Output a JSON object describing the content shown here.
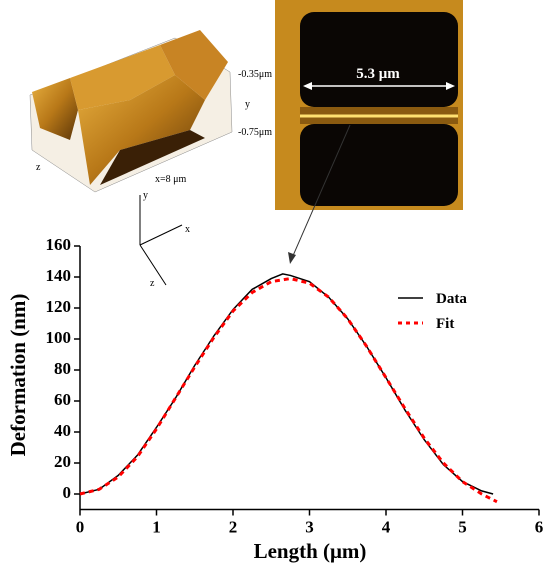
{
  "chart_data": {
    "type": "line",
    "xlabel": "Length (μm)",
    "ylabel": "Deformation (nm)",
    "xlim": [
      0,
      6
    ],
    "ylim": [
      -10,
      160
    ],
    "xticks": [
      0,
      1,
      2,
      3,
      4,
      5,
      6
    ],
    "yticks": [
      0,
      20,
      40,
      60,
      80,
      100,
      120,
      140,
      160
    ],
    "legend": "right",
    "series": [
      {
        "name": "Data",
        "color": "#000000",
        "style": "solid",
        "x": [
          0,
          0.25,
          0.5,
          0.75,
          1,
          1.25,
          1.5,
          1.75,
          2,
          2.25,
          2.5,
          2.65,
          2.75,
          3,
          3.25,
          3.5,
          3.75,
          4,
          4.25,
          4.5,
          4.75,
          5,
          5.25,
          5.4
        ],
        "values": [
          0,
          3,
          12,
          25,
          43,
          62,
          83,
          102,
          119,
          132,
          139,
          142,
          141,
          137,
          127,
          113,
          95,
          75,
          54,
          35,
          19,
          8,
          2,
          0
        ]
      },
      {
        "name": "Fit",
        "color": "#ff0000",
        "style": "dotted",
        "x": [
          0,
          0.25,
          0.5,
          0.75,
          1,
          1.25,
          1.5,
          1.75,
          2,
          2.25,
          2.5,
          2.75,
          3,
          3.25,
          3.5,
          3.75,
          4,
          4.25,
          4.5,
          4.75,
          5,
          5.25,
          5.45
        ],
        "values": [
          0,
          3,
          11,
          24,
          42,
          62,
          82,
          101,
          118,
          130,
          137,
          139,
          136,
          127,
          113,
          95,
          75,
          55,
          36,
          20,
          8,
          0,
          -5
        ]
      }
    ]
  },
  "insets": {
    "width_label": "5.3 μm",
    "x_label": "x=8 μm",
    "top_label": "-0.35μm",
    "bottom_label": "-0.75μm",
    "inset_y": "y",
    "inset_z": "z",
    "axis_y": "y",
    "axis_x": "x",
    "axis_z": "z"
  }
}
